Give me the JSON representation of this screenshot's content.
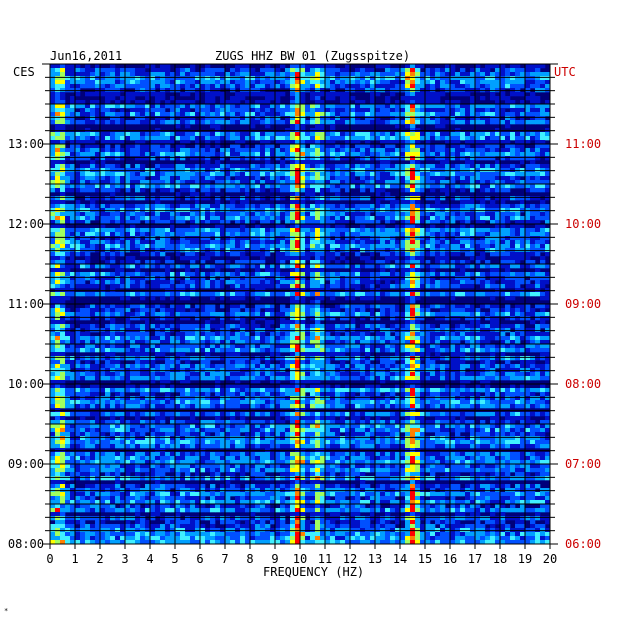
{
  "chart_data": {
    "type": "heatmap",
    "title_left": "Jun16,2011",
    "title": "ZUGS HHZ BW 01 (Zugsspitze)",
    "left_axis_title": "CES",
    "right_axis_title": "UTC",
    "xlabel": "FREQUENCY (HZ)",
    "x_ticks": [
      "0",
      "1",
      "2",
      "3",
      "4",
      "5",
      "6",
      "7",
      "8",
      "9",
      "10",
      "11",
      "12",
      "13",
      "14",
      "15",
      "16",
      "17",
      "18",
      "19",
      "20"
    ],
    "xlim": [
      0,
      20
    ],
    "left_time_labels": [
      "13:00",
      "12:00",
      "11:00",
      "10:00",
      "09:00",
      "08:00"
    ],
    "right_time_labels": [
      "11:00",
      "10:00",
      "09:00",
      "08:00",
      "07:00",
      "06:00"
    ],
    "rows_per_hour": 6,
    "hours_shown": 6,
    "colormap": [
      "#00007a",
      "#0010c8",
      "#0050ff",
      "#00a0ff",
      "#40f0ff",
      "#a0ff60",
      "#ffff00",
      "#ff8000",
      "#ff0000"
    ],
    "background_color": "#00007a",
    "utc_label_color": "#cc0000",
    "spectral_features": [
      {
        "freq_hz": 9.8,
        "strength": "strong"
      },
      {
        "freq_hz": 14.4,
        "strength": "strong"
      },
      {
        "freq_hz": 0.3,
        "strength": "moderate"
      },
      {
        "freq_hz": 10.6,
        "strength": "moderate"
      }
    ]
  },
  "corner_mark": "*"
}
